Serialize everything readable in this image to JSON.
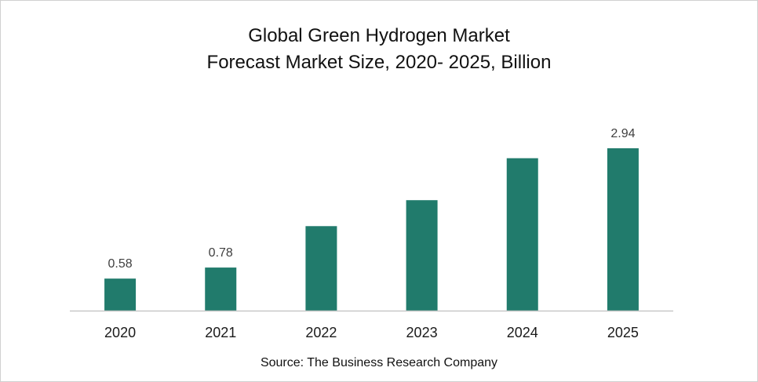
{
  "chart_data": {
    "type": "bar",
    "title": "Global Green Hydrogen Market",
    "subtitle": "Forecast Market Size, 2020- 2025, Billion",
    "xlabel": "",
    "ylabel": "",
    "categories": [
      "2020",
      "2021",
      "2022",
      "2023",
      "2024",
      "2025"
    ],
    "values": [
      0.58,
      0.78,
      1.53,
      2.0,
      2.76,
      2.94
    ],
    "data_labels": [
      "0.58",
      "0.78",
      "",
      "",
      "",
      "2.94"
    ],
    "ylim": [
      0,
      3.3
    ],
    "grid": false,
    "legend": "none",
    "bar_color": "#217B6C",
    "axis_color": "#c8c8c8",
    "source": "Source: The Business Research Company"
  }
}
